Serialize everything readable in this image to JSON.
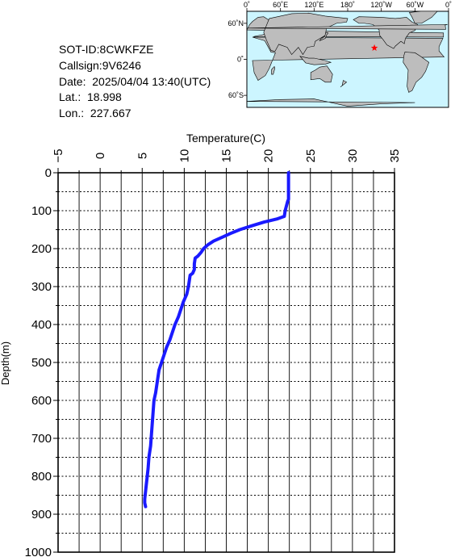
{
  "info": {
    "sot_id": "SOT-ID:8CWKFZE",
    "callsign": "Callsign:9V6246",
    "date": "Date:  2025/04/04 13:40(UTC)",
    "lat": "Lat.:  18.998",
    "lon": "Lon.:  227.667"
  },
  "map": {
    "lon_labels": [
      "0˚",
      "60˚E",
      "120˚E",
      "180˚",
      "120˚W",
      "60˚W",
      "0˚"
    ],
    "lat_labels": [
      "60˚N",
      "0˚",
      "60˚S"
    ],
    "ocean_color": "#ccf5ff",
    "land_color": "#bdbdbd",
    "marker_color": "#ff0000",
    "marker": {
      "lon": 227.667,
      "lat": 18.998
    }
  },
  "chart_data": {
    "type": "line",
    "xlabel": "Temperature(C)",
    "ylabel": "Depth(m)",
    "xlim": [
      -5,
      35
    ],
    "ylim": [
      0,
      1000
    ],
    "y_inverted": true,
    "x_axis_position": "top",
    "grid": true,
    "xticks": [
      -5,
      0,
      5,
      10,
      15,
      20,
      25,
      30,
      35
    ],
    "yticks": [
      0,
      100,
      200,
      300,
      400,
      500,
      600,
      700,
      800,
      900,
      1000
    ],
    "line_color": "#1a1aff",
    "series": [
      {
        "x": [
          22.4,
          22.4,
          22.4,
          22.4,
          22.3,
          22.0,
          21.9,
          21.0,
          19.5,
          18.0,
          16.6,
          15.5,
          14.5,
          13.5,
          12.8,
          12.3,
          12.0,
          11.6,
          11.3,
          11.2,
          11.2,
          11.0,
          10.7,
          10.6,
          10.5,
          10.3,
          9.9,
          9.6,
          9.3,
          8.9,
          8.6,
          8.3,
          7.9,
          7.6,
          7.3,
          7.0,
          6.8,
          6.6,
          6.4,
          6.3,
          6.2,
          6.1,
          6.0,
          5.8,
          5.7,
          5.6,
          5.5,
          5.4,
          5.3,
          5.3,
          5.4
        ],
        "y": [
          0,
          20,
          50,
          70,
          75,
          100,
          115,
          122,
          130,
          140,
          150,
          160,
          170,
          180,
          190,
          200,
          210,
          220,
          225,
          240,
          255,
          265,
          270,
          285,
          300,
          320,
          340,
          360,
          380,
          400,
          420,
          440,
          460,
          480,
          500,
          520,
          550,
          580,
          600,
          630,
          660,
          690,
          720,
          750,
          780,
          800,
          820,
          840,
          860,
          870,
          880
        ]
      }
    ]
  }
}
